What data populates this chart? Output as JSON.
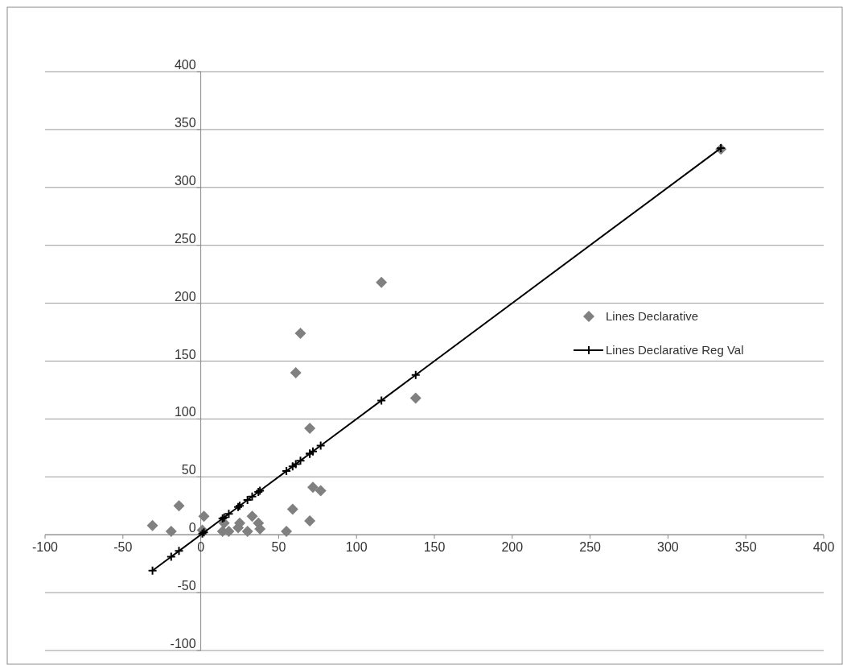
{
  "chart_data": {
    "type": "scatter",
    "xlim": [
      -100,
      400
    ],
    "xticks": [
      -100,
      -50,
      0,
      50,
      100,
      150,
      200,
      250,
      300,
      350,
      400
    ],
    "ylim": [
      -100,
      400
    ],
    "yticks": [
      -100,
      -50,
      0,
      50,
      100,
      150,
      200,
      250,
      300,
      350,
      400
    ],
    "grid": "y",
    "legend": "right",
    "series": [
      {
        "name": "Lines Declarative",
        "type": "scatter",
        "marker": "diamond",
        "color": "#808080",
        "x": [
          -31,
          -19,
          -14,
          1,
          2,
          14,
          15,
          18,
          24,
          25,
          30,
          33,
          37,
          38,
          55,
          59,
          61,
          64,
          70,
          70,
          72,
          77,
          116,
          138,
          334
        ],
        "values": [
          8,
          3,
          25,
          4,
          16,
          3,
          10,
          3,
          6,
          10,
          3,
          16,
          10,
          5,
          3,
          22,
          140,
          174,
          12,
          92,
          41,
          38,
          218,
          118,
          333
        ]
      },
      {
        "name": "Lines Declarative Reg Val",
        "type": "line",
        "marker": "cross",
        "color": "#000000",
        "x": [
          -31,
          -19,
          -14,
          1,
          2,
          14,
          15,
          18,
          24,
          25,
          30,
          33,
          37,
          38,
          55,
          59,
          61,
          64,
          70,
          70,
          72,
          77,
          116,
          138,
          334
        ],
        "values": [
          -31,
          -19,
          -14,
          1,
          2,
          14,
          15,
          18,
          24,
          25,
          30,
          33,
          37,
          38,
          55,
          59,
          61,
          64,
          70,
          70,
          72,
          77,
          116,
          138,
          334
        ]
      }
    ]
  }
}
